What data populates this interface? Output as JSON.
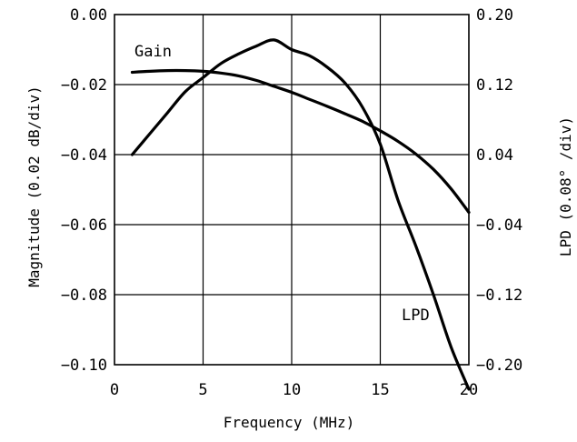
{
  "chart_data": {
    "type": "line",
    "xlabel": "Frequency (MHz)",
    "ylabel_left": "Magnitude (0.02 dB/div)",
    "ylabel_right": "LPD (0.08° /div)",
    "xlim": [
      0,
      20
    ],
    "ylim_left": [
      -0.1,
      0.0
    ],
    "ylim_right": [
      -0.2,
      0.2
    ],
    "x_ticks": [
      "0",
      "5",
      "10",
      "15",
      "20"
    ],
    "y_left_ticks": [
      "0.00",
      "−0.02",
      "−0.04",
      "−0.06",
      "−0.08",
      "−0.10"
    ],
    "y_right_ticks": [
      "0.20",
      "0.12",
      "0.04",
      "−0.04",
      "−0.12",
      "−0.20"
    ],
    "grid": true,
    "series": [
      {
        "name": "Gain",
        "axis": "left",
        "x": [
          1,
          2,
          3,
          4,
          5,
          6,
          7,
          8,
          9,
          10,
          11,
          12,
          13,
          14,
          15,
          16,
          17,
          18,
          19,
          20
        ],
        "y": [
          -0.0165,
          -0.0162,
          -0.016,
          -0.016,
          -0.0162,
          -0.0167,
          -0.0175,
          -0.0188,
          -0.0205,
          -0.0222,
          -0.0242,
          -0.0262,
          -0.0283,
          -0.0305,
          -0.0332,
          -0.0362,
          -0.0398,
          -0.0442,
          -0.0498,
          -0.0565
        ]
      },
      {
        "name": "LPD",
        "axis": "right",
        "x": [
          1,
          2,
          3,
          4,
          5,
          6,
          7,
          8,
          9,
          10,
          11,
          12,
          13,
          14,
          15,
          16,
          17,
          18,
          19,
          20
        ],
        "y": [
          0.04,
          0.064,
          0.088,
          0.112,
          0.128,
          0.144,
          0.155,
          0.164,
          0.171,
          0.16,
          0.153,
          0.14,
          0.122,
          0.094,
          0.052,
          -0.012,
          -0.064,
          -0.12,
          -0.18,
          -0.228
        ]
      }
    ]
  }
}
